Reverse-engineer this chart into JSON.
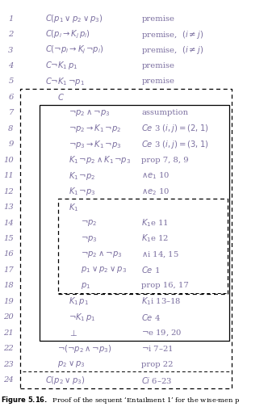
{
  "bg_color": "#ffffff",
  "rows": [
    {
      "num": "1",
      "formula": "$C(p_1 \\vee p_2 \\vee p_3)$",
      "justification": "premise",
      "indent": 0
    },
    {
      "num": "2",
      "formula": "$C(p_i \\rightarrow K_j\\,p_i)$",
      "justification": "premise,  $(i \\neq j)$",
      "indent": 0
    },
    {
      "num": "3",
      "formula": "$C(\\neg p_i \\rightarrow K_j\\,\\neg p_i)$",
      "justification": "premise,  $(i \\neq j)$",
      "indent": 0
    },
    {
      "num": "4",
      "formula": "$C{\\neg}K_1\\,p_1$",
      "justification": "premise",
      "indent": 0
    },
    {
      "num": "5",
      "formula": "$C{\\neg}K_1\\,{\\neg}p_1$",
      "justification": "premise",
      "indent": 0
    },
    {
      "num": "6",
      "formula": "$C$",
      "justification": "",
      "indent": 1,
      "outer_box_start": true
    },
    {
      "num": "7",
      "formula": "$\\neg p_2 \\wedge \\neg p_3$",
      "justification": "assumption",
      "indent": 2,
      "inner_box_start": true
    },
    {
      "num": "8",
      "formula": "$\\neg p_2 \\rightarrow K_1\\,\\neg p_2$",
      "justification": "$Ce$ 3 $(i,j)=(2,1)$",
      "indent": 2
    },
    {
      "num": "9",
      "formula": "$\\neg p_3 \\rightarrow K_1\\,\\neg p_3$",
      "justification": "$Ce$ 3 $(i,j)=(3,1)$",
      "indent": 2
    },
    {
      "num": "10",
      "formula": "$K_1\\,\\neg p_2 \\wedge K_1\\,\\neg p_3$",
      "justification": "prop 7, 8, 9",
      "indent": 2
    },
    {
      "num": "11",
      "formula": "$K_1\\,\\neg p_2$",
      "justification": "$\\wedge e_1$ 10",
      "indent": 2
    },
    {
      "num": "12",
      "formula": "$K_1\\,\\neg p_3$",
      "justification": "$\\wedge e_2$ 10",
      "indent": 2
    },
    {
      "num": "13",
      "formula": "$K_1$",
      "justification": "",
      "indent": 2,
      "k1_box_start": true
    },
    {
      "num": "14",
      "formula": "$\\neg p_2$",
      "justification": "$K_1$e 11",
      "indent": 3
    },
    {
      "num": "15",
      "formula": "$\\neg p_3$",
      "justification": "$K_1$e 12",
      "indent": 3
    },
    {
      "num": "16",
      "formula": "$\\neg p_2 \\wedge \\neg p_3$",
      "justification": "$\\wedge$i 14, 15",
      "indent": 3
    },
    {
      "num": "17",
      "formula": "$p_1 \\vee p_2 \\vee p_3$",
      "justification": "$Ce$ 1",
      "indent": 3
    },
    {
      "num": "18",
      "formula": "$p_1$",
      "justification": "prop 16, 17",
      "indent": 3,
      "k1_box_end": true
    },
    {
      "num": "19",
      "formula": "$K_1\\,p_1$",
      "justification": "$K_1$i 13–18",
      "indent": 2
    },
    {
      "num": "20",
      "formula": "$\\neg K_1\\,p_1$",
      "justification": "$Ce$ 4",
      "indent": 2
    },
    {
      "num": "21",
      "formula": "$\\bot$",
      "justification": "$\\neg$e 19, 20",
      "indent": 2,
      "inner_box_end": true
    },
    {
      "num": "22",
      "formula": "$\\neg(\\neg p_2 \\wedge \\neg p_3)$",
      "justification": "$\\neg$i 7–21",
      "indent": 1
    },
    {
      "num": "23",
      "formula": "$p_2 \\vee p_3$",
      "justification": "prop 22",
      "indent": 1,
      "dashed_under": true
    },
    {
      "num": "24",
      "formula": "$C(p_2 \\vee p_3)$",
      "justification": "$Ci$ 6–23",
      "indent": 0,
      "outer_box_end": true
    }
  ],
  "text_color": "#7B6FA0",
  "just_color": "#7B6FA0",
  "num_color": "#7B6FA0",
  "caption_bold": "Figure 5.16.",
  "caption_rest": "  Proof of the sequent ‘Entailment 1’ for the wise-men p"
}
